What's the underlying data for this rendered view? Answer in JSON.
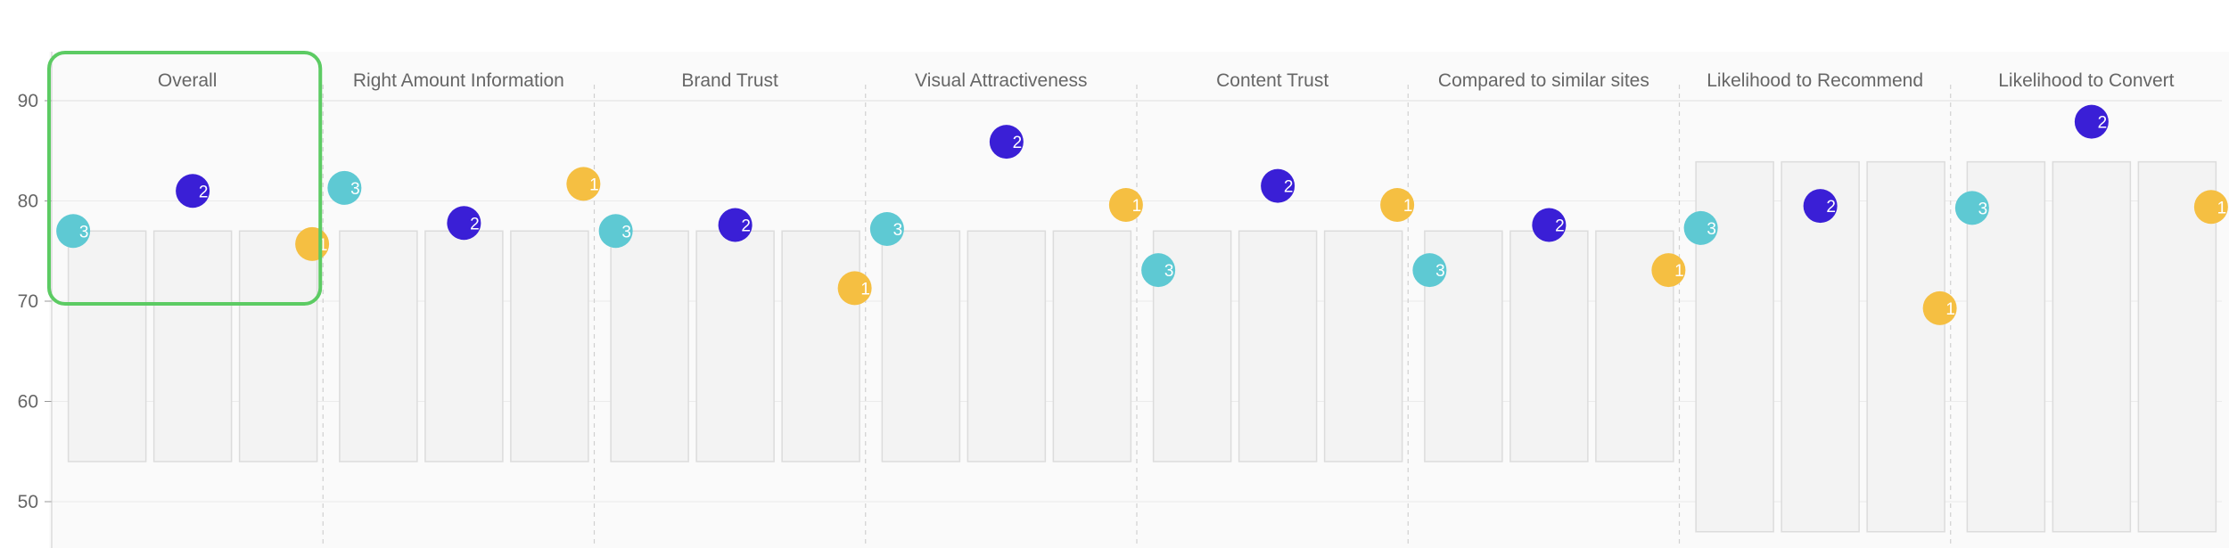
{
  "chart_data": {
    "type": "scatter",
    "ylim": [
      48,
      95
    ],
    "yticks": [
      50,
      60,
      70,
      80,
      90
    ],
    "highlighted_panel": "Overall",
    "colors": {
      "3": "#5ec9d3",
      "2": "#3a1fd6",
      "1": "#f5bf42"
    },
    "panels": [
      {
        "title": "Overall",
        "bars": [
          [
            54,
            77
          ],
          [
            54,
            77
          ],
          [
            54,
            77
          ]
        ],
        "points": [
          {
            "label": "3",
            "value": 77
          },
          {
            "label": "2",
            "value": 81
          },
          {
            "label": "1",
            "value": 75.7
          }
        ]
      },
      {
        "title": "Right Amount Information",
        "bars": [
          [
            54,
            77
          ],
          [
            54,
            77
          ],
          [
            54,
            77
          ]
        ],
        "points": [
          {
            "label": "3",
            "value": 81.3
          },
          {
            "label": "2",
            "value": 77.8
          },
          {
            "label": "1",
            "value": 81.7
          }
        ]
      },
      {
        "title": "Brand Trust",
        "bars": [
          [
            54,
            77
          ],
          [
            54,
            77
          ],
          [
            54,
            77
          ]
        ],
        "points": [
          {
            "label": "3",
            "value": 77
          },
          {
            "label": "2",
            "value": 77.6
          },
          {
            "label": "1",
            "value": 71.3
          }
        ]
      },
      {
        "title": "Visual Attractiveness",
        "bars": [
          [
            54,
            77
          ],
          [
            54,
            77
          ],
          [
            54,
            77
          ]
        ],
        "points": [
          {
            "label": "3",
            "value": 77.2
          },
          {
            "label": "2",
            "value": 85.9
          },
          {
            "label": "1",
            "value": 79.6
          }
        ]
      },
      {
        "title": "Content Trust",
        "bars": [
          [
            54,
            77
          ],
          [
            54,
            77
          ],
          [
            54,
            77
          ]
        ],
        "points": [
          {
            "label": "3",
            "value": 73.1
          },
          {
            "label": "2",
            "value": 81.5
          },
          {
            "label": "1",
            "value": 79.6
          }
        ]
      },
      {
        "title": "Compared to similar sites",
        "bars": [
          [
            54,
            77
          ],
          [
            54,
            77
          ],
          [
            54,
            77
          ]
        ],
        "points": [
          {
            "label": "3",
            "value": 73.1
          },
          {
            "label": "2",
            "value": 77.6
          },
          {
            "label": "1",
            "value": 73.1
          }
        ]
      },
      {
        "title": "Likelihood to Recommend",
        "bars": [
          [
            47,
            83.9
          ],
          [
            47,
            83.9
          ],
          [
            47,
            83.9
          ]
        ],
        "points": [
          {
            "label": "3",
            "value": 77.3
          },
          {
            "label": "2",
            "value": 79.5
          },
          {
            "label": "1",
            "value": 69.3
          }
        ]
      },
      {
        "title": "Likelihood to Convert",
        "bars": [
          [
            47,
            83.9
          ],
          [
            47,
            83.9
          ],
          [
            47,
            83.9
          ]
        ],
        "points": [
          {
            "label": "3",
            "value": 79.3
          },
          {
            "label": "2",
            "value": 87.9
          },
          {
            "label": "1",
            "value": 79.4
          }
        ]
      }
    ]
  }
}
